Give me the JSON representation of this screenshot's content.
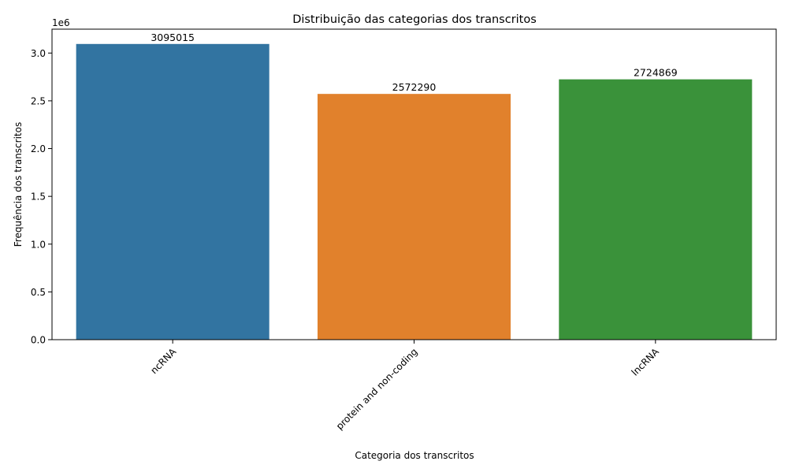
{
  "chart_data": {
    "type": "bar",
    "title": "Distribuição das categorias dos transcritos",
    "xlabel": "Categoria dos transcritos",
    "ylabel": "Frequência dos transcritos",
    "y_offset_label": "1e6",
    "y_tick_scale": 1000000,
    "ylim": [
      0,
      3250000
    ],
    "y_ticks": [
      0,
      500000,
      1000000,
      1500000,
      2000000,
      2500000,
      3000000
    ],
    "y_tick_labels": [
      "0.0",
      "0.5",
      "1.0",
      "1.5",
      "2.0",
      "2.5",
      "3.0"
    ],
    "categories": [
      "ncRNA",
      "protein and non-coding",
      "lncRNA"
    ],
    "values": [
      3095015,
      2572290,
      2724869
    ],
    "data_labels": [
      "3095015",
      "2572290",
      "2724869"
    ],
    "colors": [
      "#3274a1",
      "#e1812c",
      "#3a923a"
    ],
    "grid": false,
    "legend": "none",
    "x_tick_rotation": "45 degrees"
  }
}
